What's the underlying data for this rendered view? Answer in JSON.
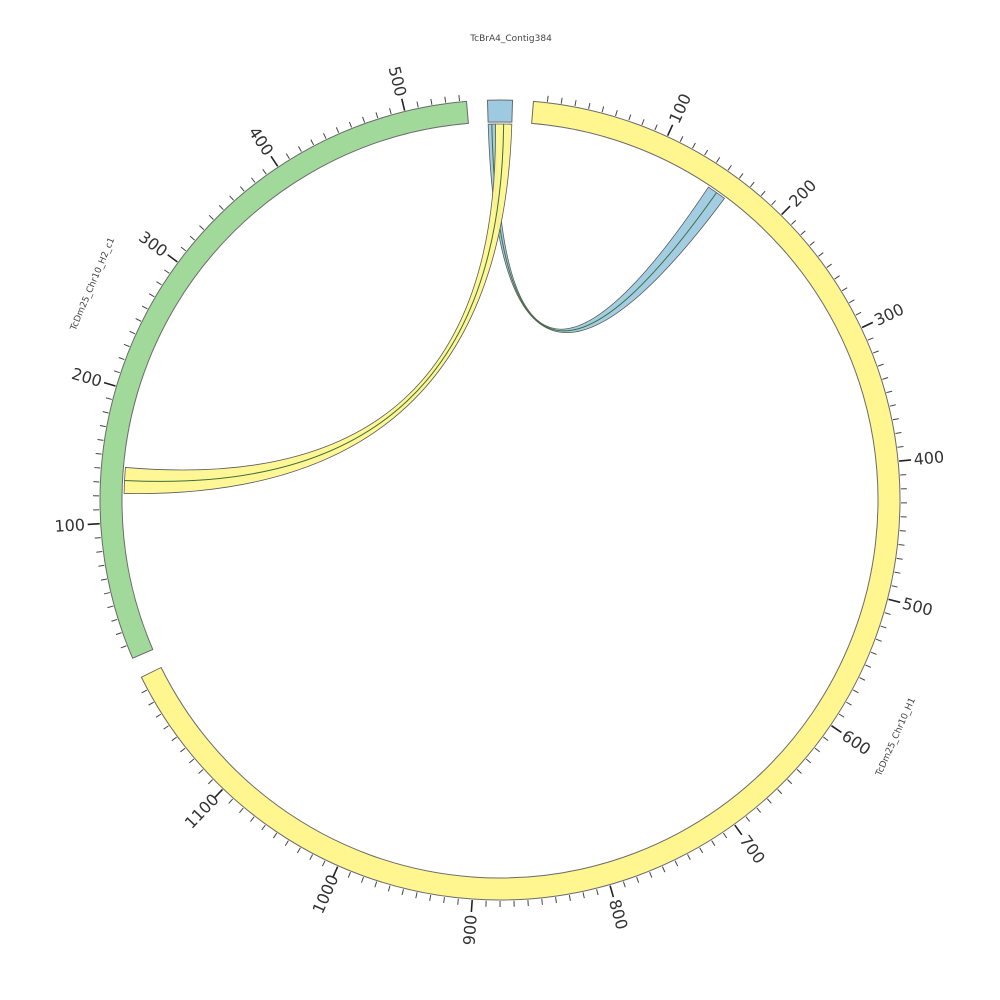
{
  "chart_data": {
    "type": "chord",
    "segments": [
      {
        "name": "TcBrA4_Contig384",
        "length": 13,
        "color": "#9ecae1",
        "tick_labels": []
      },
      {
        "name": "TcDm25_Chr10_H1",
        "length": 1200,
        "color": "#fff68f",
        "tick_labels": [
          "100",
          "200",
          "300",
          "400",
          "500",
          "600",
          "700",
          "800",
          "900",
          "1000",
          "1100"
        ]
      },
      {
        "name": "TcDm25_Chr10_H2_c1",
        "length": 545,
        "color": "#a1d99b",
        "tick_labels": [
          "100",
          "200",
          "300",
          "400",
          "500"
        ]
      }
    ],
    "links": [
      {
        "source": "TcBrA4_Contig384",
        "source_start": 0,
        "source_end": 4,
        "target": "TcDm25_Chr10_H1",
        "target_start": 145,
        "target_end": 160,
        "color": "#9ecae1"
      },
      {
        "source": "TcBrA4_Contig384",
        "source_start": 4,
        "source_end": 13,
        "target": "TcDm25_Chr10_H2_c1",
        "target_start": 122,
        "target_end": 142,
        "color": "#fff68f"
      }
    ]
  }
}
